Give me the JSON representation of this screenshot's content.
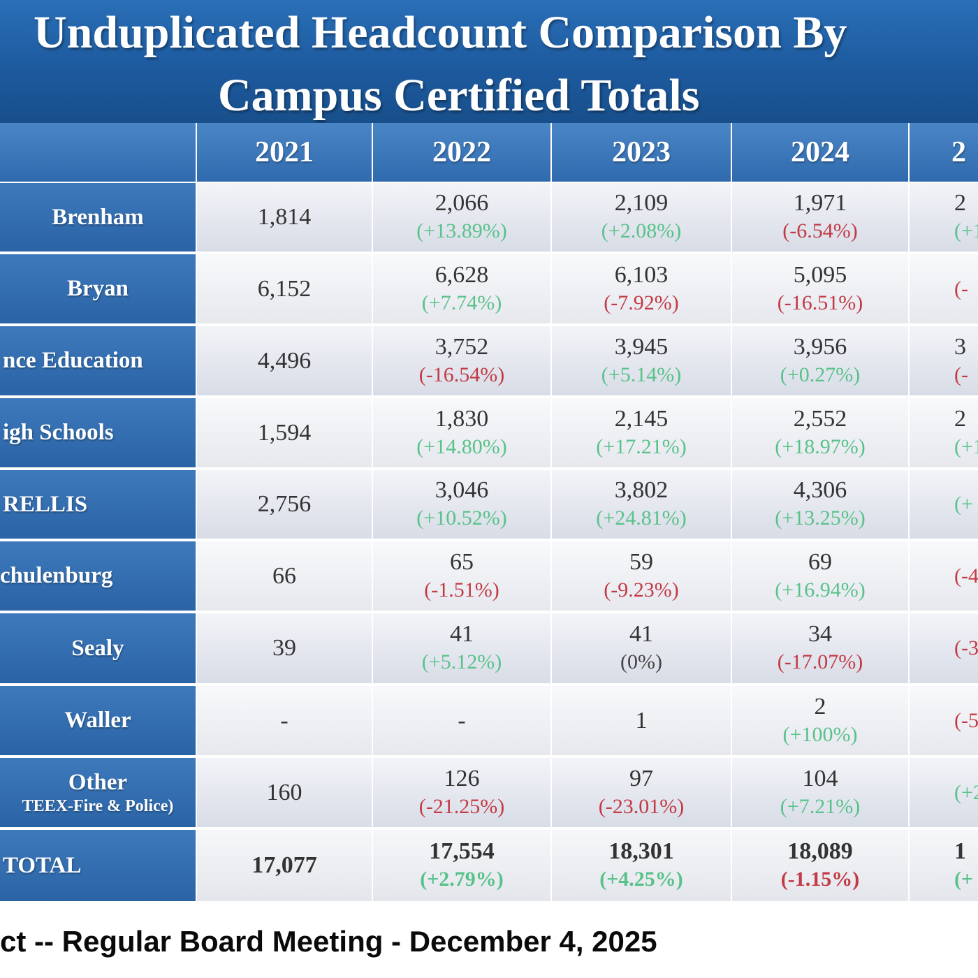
{
  "title": {
    "line1": "Unduplicated Headcount Comparison By",
    "line2": "Campus  Certified Totals"
  },
  "table": {
    "columns": [
      "2021",
      "2022",
      "2023",
      "2024",
      "2"
    ],
    "rows": [
      {
        "label": "Brenham",
        "sub": "",
        "cells": [
          {
            "value": "1,814",
            "pct": "",
            "tone": ""
          },
          {
            "value": "2,066",
            "pct": "(+13.89%)",
            "tone": "pos"
          },
          {
            "value": "2,109",
            "pct": "(+2.08%)",
            "tone": "pos"
          },
          {
            "value": "1,971",
            "pct": "(-6.54%)",
            "tone": "neg"
          },
          {
            "value": "2",
            "pct": "(+1",
            "tone": "pos"
          }
        ]
      },
      {
        "label": "Bryan",
        "sub": "",
        "cells": [
          {
            "value": "6,152",
            "pct": "",
            "tone": ""
          },
          {
            "value": "6,628",
            "pct": "(+7.74%)",
            "tone": "pos"
          },
          {
            "value": "6,103",
            "pct": "(-7.92%)",
            "tone": "neg"
          },
          {
            "value": "5,095",
            "pct": "(-16.51%)",
            "tone": "neg"
          },
          {
            "value": "",
            "pct": "(-",
            "tone": "neg"
          }
        ]
      },
      {
        "label": "nce Education",
        "sub": "",
        "cells": [
          {
            "value": "4,496",
            "pct": "",
            "tone": ""
          },
          {
            "value": "3,752",
            "pct": "(-16.54%)",
            "tone": "neg"
          },
          {
            "value": "3,945",
            "pct": "(+5.14%)",
            "tone": "pos"
          },
          {
            "value": "3,956",
            "pct": "(+0.27%)",
            "tone": "pos"
          },
          {
            "value": "3",
            "pct": "(-",
            "tone": "neg"
          }
        ]
      },
      {
        "label": "igh Schools",
        "sub": "",
        "cells": [
          {
            "value": "1,594",
            "pct": "",
            "tone": ""
          },
          {
            "value": "1,830",
            "pct": "(+14.80%)",
            "tone": "pos"
          },
          {
            "value": "2,145",
            "pct": "(+17.21%)",
            "tone": "pos"
          },
          {
            "value": "2,552",
            "pct": "(+18.97%)",
            "tone": "pos"
          },
          {
            "value": "2",
            "pct": "(+1",
            "tone": "pos"
          }
        ]
      },
      {
        "label": "RELLIS",
        "sub": "",
        "cells": [
          {
            "value": "2,756",
            "pct": "",
            "tone": ""
          },
          {
            "value": "3,046",
            "pct": "(+10.52%)",
            "tone": "pos"
          },
          {
            "value": "3,802",
            "pct": "(+24.81%)",
            "tone": "pos"
          },
          {
            "value": "4,306",
            "pct": "(+13.25%)",
            "tone": "pos"
          },
          {
            "value": "",
            "pct": "(+",
            "tone": "pos"
          }
        ]
      },
      {
        "label": "chulenburg",
        "sub": "",
        "cells": [
          {
            "value": "66",
            "pct": "",
            "tone": ""
          },
          {
            "value": "65",
            "pct": "(-1.51%)",
            "tone": "neg"
          },
          {
            "value": "59",
            "pct": "(-9.23%)",
            "tone": "neg"
          },
          {
            "value": "69",
            "pct": "(+16.94%)",
            "tone": "pos"
          },
          {
            "value": "",
            "pct": "(-4",
            "tone": "neg"
          }
        ]
      },
      {
        "label": "Sealy",
        "sub": "",
        "cells": [
          {
            "value": "39",
            "pct": "",
            "tone": ""
          },
          {
            "value": "41",
            "pct": "(+5.12%)",
            "tone": "pos"
          },
          {
            "value": "41",
            "pct": "(0%)",
            "tone": "neu"
          },
          {
            "value": "34",
            "pct": "(-17.07%)",
            "tone": "neg"
          },
          {
            "value": "",
            "pct": "(-3",
            "tone": "neg"
          }
        ]
      },
      {
        "label": "Waller",
        "sub": "",
        "cells": [
          {
            "value": "-",
            "pct": "",
            "tone": ""
          },
          {
            "value": "-",
            "pct": "",
            "tone": ""
          },
          {
            "value": "1",
            "pct": "",
            "tone": ""
          },
          {
            "value": "2",
            "pct": "(+100%)",
            "tone": "pos"
          },
          {
            "value": "",
            "pct": "(-5",
            "tone": "neg"
          }
        ]
      },
      {
        "label": "Other",
        "sub": "TEEX-Fire & Police)",
        "cells": [
          {
            "value": "160",
            "pct": "",
            "tone": ""
          },
          {
            "value": "126",
            "pct": "(-21.25%)",
            "tone": "neg"
          },
          {
            "value": "97",
            "pct": "(-23.01%)",
            "tone": "neg"
          },
          {
            "value": "104",
            "pct": "(+7.21%)",
            "tone": "pos"
          },
          {
            "value": "",
            "pct": "(+2",
            "tone": "pos"
          }
        ]
      },
      {
        "label": "TOTAL",
        "sub": "",
        "total": true,
        "cells": [
          {
            "value": "17,077",
            "pct": "",
            "tone": ""
          },
          {
            "value": "17,554",
            "pct": "(+2.79%)",
            "tone": "pos"
          },
          {
            "value": "18,301",
            "pct": "(+4.25%)",
            "tone": "pos"
          },
          {
            "value": "18,089",
            "pct": "(-1.15%)",
            "tone": "neg"
          },
          {
            "value": "1",
            "pct": "(+",
            "tone": "pos"
          }
        ]
      }
    ]
  },
  "footer": {
    "text": "ct -- Regular Board Meeting - December 4, 2025"
  },
  "colors": {
    "positive": "#58c28a",
    "negative": "#c23a45",
    "header_blue": "#2f6aae"
  }
}
